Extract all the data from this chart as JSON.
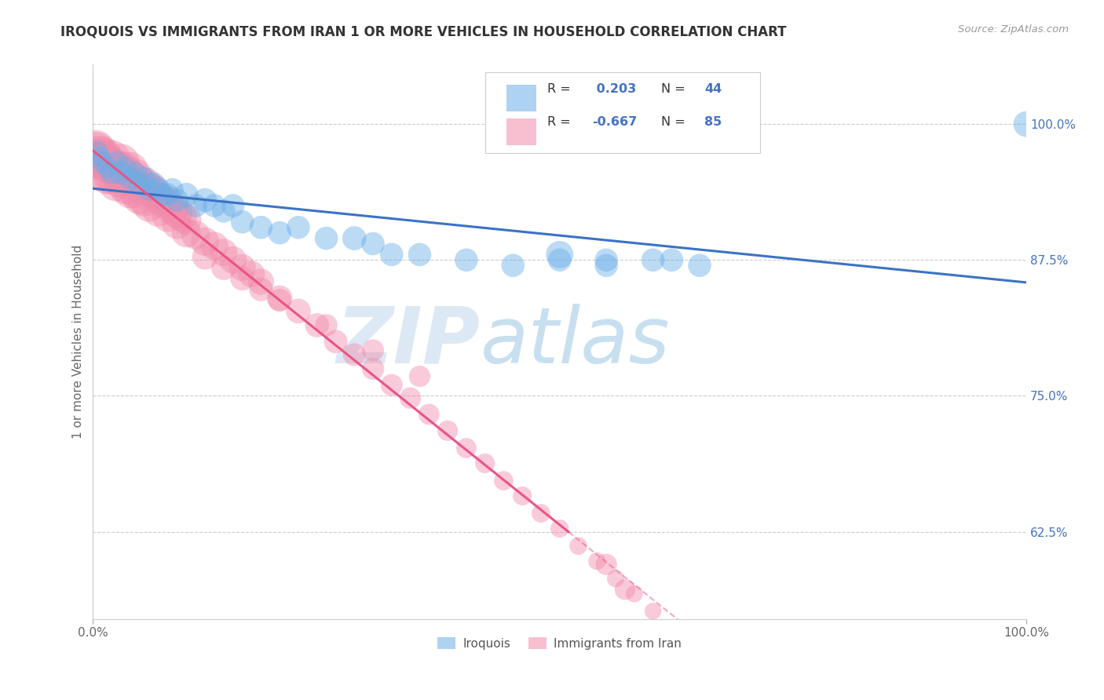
{
  "title": "IROQUOIS VS IMMIGRANTS FROM IRAN 1 OR MORE VEHICLES IN HOUSEHOLD CORRELATION CHART",
  "source": "Source: ZipAtlas.com",
  "ylabel": "1 or more Vehicles in Household",
  "xlim": [
    0.0,
    1.0
  ],
  "ylim": [
    0.545,
    1.055
  ],
  "yticks": [
    0.625,
    0.75,
    0.875,
    1.0
  ],
  "ytick_labels": [
    "62.5%",
    "75.0%",
    "87.5%",
    "100.0%"
  ],
  "xtick_labels": [
    "0.0%",
    "100.0%"
  ],
  "blue_color": "#6aaee8",
  "pink_color": "#f28bab",
  "trend_blue_color": "#3b73c4",
  "trend_pink_color": "#e85585",
  "watermark_zip": "ZIP",
  "watermark_atlas": "atlas",
  "blue_label": "Iroquois",
  "pink_label": "Immigrants from Iran",
  "iroquois_x": [
    0.005,
    0.008,
    0.01,
    0.015,
    0.02,
    0.025,
    0.03,
    0.035,
    0.04,
    0.045,
    0.05,
    0.055,
    0.06,
    0.065,
    0.07,
    0.075,
    0.08,
    0.085,
    0.09,
    0.1,
    0.11,
    0.12,
    0.13,
    0.14,
    0.15,
    0.16,
    0.18,
    0.2,
    0.22,
    0.25,
    0.28,
    0.3,
    0.32,
    0.35,
    0.4,
    0.45,
    0.5,
    0.55,
    0.6,
    0.65,
    0.5,
    0.55,
    0.62,
    1.0
  ],
  "iroquois_y": [
    0.975,
    0.97,
    0.965,
    0.96,
    0.955,
    0.965,
    0.955,
    0.96,
    0.95,
    0.955,
    0.945,
    0.95,
    0.94,
    0.945,
    0.94,
    0.935,
    0.935,
    0.94,
    0.93,
    0.935,
    0.925,
    0.93,
    0.925,
    0.92,
    0.925,
    0.91,
    0.905,
    0.9,
    0.905,
    0.895,
    0.895,
    0.89,
    0.88,
    0.88,
    0.875,
    0.87,
    0.875,
    0.87,
    0.875,
    0.87,
    0.88,
    0.875,
    0.875,
    1.0
  ],
  "iroquois_size": [
    50,
    50,
    55,
    55,
    60,
    60,
    65,
    60,
    65,
    60,
    65,
    65,
    65,
    65,
    65,
    60,
    65,
    60,
    65,
    70,
    65,
    70,
    65,
    65,
    65,
    65,
    65,
    65,
    65,
    65,
    70,
    65,
    65,
    65,
    65,
    65,
    65,
    65,
    65,
    65,
    90,
    65,
    65,
    80
  ],
  "iran_x": [
    0.002,
    0.003,
    0.005,
    0.007,
    0.008,
    0.01,
    0.01,
    0.012,
    0.015,
    0.015,
    0.018,
    0.02,
    0.02,
    0.022,
    0.025,
    0.025,
    0.028,
    0.03,
    0.03,
    0.032,
    0.035,
    0.035,
    0.038,
    0.04,
    0.04,
    0.042,
    0.045,
    0.045,
    0.05,
    0.05,
    0.055,
    0.055,
    0.06,
    0.06,
    0.065,
    0.07,
    0.07,
    0.075,
    0.08,
    0.08,
    0.085,
    0.09,
    0.09,
    0.095,
    0.1,
    0.1,
    0.11,
    0.12,
    0.13,
    0.14,
    0.15,
    0.16,
    0.17,
    0.18,
    0.2,
    0.22,
    0.24,
    0.26,
    0.28,
    0.3,
    0.32,
    0.34,
    0.36,
    0.38,
    0.4,
    0.42,
    0.44,
    0.46,
    0.48,
    0.5,
    0.52,
    0.54,
    0.56,
    0.58,
    0.6,
    0.12,
    0.14,
    0.16,
    0.18,
    0.2,
    0.25,
    0.3,
    0.35,
    0.55,
    0.57
  ],
  "iran_y": [
    0.975,
    0.975,
    0.968,
    0.972,
    0.968,
    0.97,
    0.955,
    0.965,
    0.965,
    0.952,
    0.962,
    0.968,
    0.952,
    0.96,
    0.96,
    0.945,
    0.955,
    0.965,
    0.948,
    0.958,
    0.955,
    0.942,
    0.952,
    0.958,
    0.938,
    0.95,
    0.952,
    0.938,
    0.945,
    0.932,
    0.945,
    0.93,
    0.94,
    0.925,
    0.938,
    0.932,
    0.92,
    0.928,
    0.928,
    0.915,
    0.922,
    0.918,
    0.908,
    0.915,
    0.912,
    0.9,
    0.898,
    0.892,
    0.888,
    0.882,
    0.875,
    0.868,
    0.862,
    0.855,
    0.84,
    0.828,
    0.815,
    0.8,
    0.788,
    0.775,
    0.76,
    0.748,
    0.733,
    0.718,
    0.702,
    0.688,
    0.672,
    0.658,
    0.642,
    0.628,
    0.612,
    0.598,
    0.582,
    0.568,
    0.552,
    0.878,
    0.868,
    0.858,
    0.848,
    0.838,
    0.815,
    0.792,
    0.768,
    0.595,
    0.572
  ],
  "iran_size": [
    220,
    180,
    200,
    170,
    180,
    190,
    160,
    175,
    170,
    155,
    165,
    170,
    155,
    162,
    160,
    148,
    155,
    162,
    148,
    155,
    152,
    140,
    148,
    152,
    138,
    148,
    148,
    136,
    142,
    132,
    140,
    130,
    136,
    126,
    132,
    128,
    118,
    125,
    122,
    114,
    118,
    115,
    108,
    112,
    110,
    102,
    100,
    98,
    95,
    92,
    90,
    88,
    85,
    82,
    78,
    74,
    70,
    66,
    63,
    60,
    58,
    56,
    53,
    51,
    49,
    47,
    45,
    43,
    42,
    40,
    38,
    37,
    36,
    35,
    34,
    80,
    75,
    70,
    68,
    65,
    60,
    58,
    55,
    55,
    52
  ]
}
